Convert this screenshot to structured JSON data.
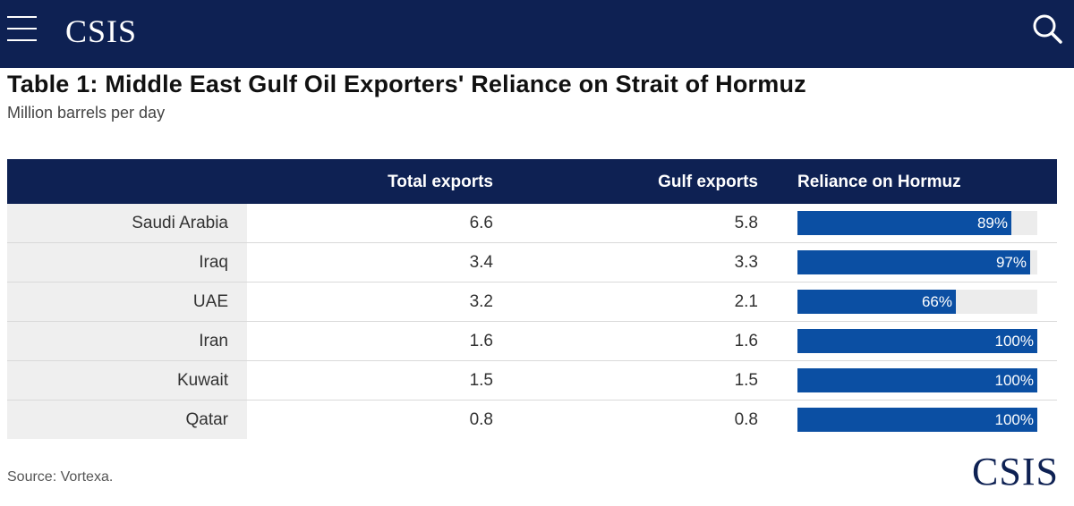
{
  "header": {
    "logo": "CSIS",
    "menu_icon": "hamburger-menu-icon",
    "search_icon": "search-icon"
  },
  "colors": {
    "nav_background": "#0e2153",
    "bar_fill": "#0b4fa3",
    "bar_track": "#ececec",
    "country_cell": "#efefef"
  },
  "chart_data": {
    "type": "table",
    "title": "Table 1: Middle East Gulf Oil Exporters' Reliance on Strait of Hormuz",
    "subtitle": "Million barrels per day",
    "columns": [
      "",
      "Total exports",
      "Gulf exports",
      "Reliance on Hormuz"
    ],
    "rows": [
      {
        "country": "Saudi Arabia",
        "total": "6.6",
        "gulf": "5.8",
        "reliance_label": "89%",
        "reliance": 89
      },
      {
        "country": "Iraq",
        "total": "3.4",
        "gulf": "3.3",
        "reliance_label": "97%",
        "reliance": 97
      },
      {
        "country": "UAE",
        "total": "3.2",
        "gulf": "2.1",
        "reliance_label": "66%",
        "reliance": 66
      },
      {
        "country": "Iran",
        "total": "1.6",
        "gulf": "1.6",
        "reliance_label": "100%",
        "reliance": 100
      },
      {
        "country": "Kuwait",
        "total": "1.5",
        "gulf": "1.5",
        "reliance_label": "100%",
        "reliance": 100
      },
      {
        "country": "Qatar",
        "total": "0.8",
        "gulf": "0.8",
        "reliance_label": "100%",
        "reliance": 100
      }
    ],
    "reliance_max": 100,
    "source": "Source: Vortexa."
  },
  "footer": {
    "logo": "CSIS"
  }
}
